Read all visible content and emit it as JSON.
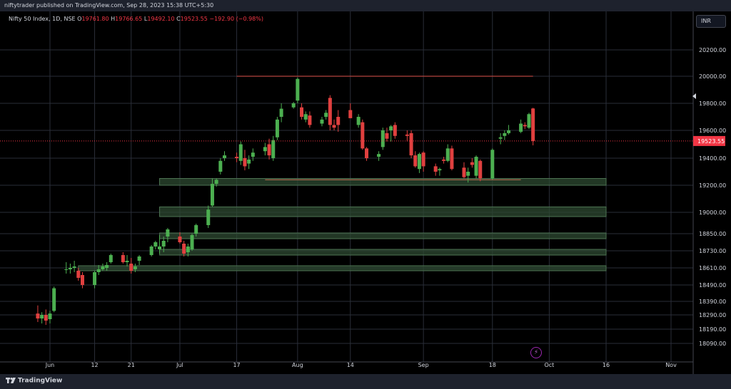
{
  "header": {
    "published_text": "niftytrader published on TradingView.com, Sep 28, 2023 15:38 UTC+5:30"
  },
  "legend": {
    "symbol": "Nifty 50 Index, 1D, NSE",
    "o_label": "O",
    "o_value": "19761.80",
    "h_label": "H",
    "h_value": "19766.65",
    "l_label": "L",
    "l_value": "19492.10",
    "c_label": "C",
    "c_value": "19523.55",
    "change": "−192.90 (−0.98%)"
  },
  "toolbar": {
    "currency": "INR"
  },
  "footer": {
    "brand": "TradingView"
  },
  "colors": {
    "background": "#131722",
    "grid": "#2a2e39",
    "up": "#26a69a",
    "down": "#f23645",
    "up_candle": "#4caf50",
    "down_candle": "#e0403f",
    "zone_fill": "#2e4a32",
    "zone_border": "#4d7352",
    "resistance_line": "#b2443f",
    "support_line": "#a0654a",
    "price_label_bg": "#f23645"
  },
  "chart_data": {
    "type": "candlestick",
    "y_axis": {
      "ticks": [
        "20200.00",
        "20000.00",
        "19800.00",
        "19600.00",
        "19400.00",
        "19200.00",
        "19000.00",
        "18850.00",
        "18730.00",
        "18610.00",
        "18490.00",
        "18390.00",
        "18290.00",
        "18190.00",
        "18090.00"
      ],
      "current_price": "19523.55"
    },
    "x_axis": {
      "ticks": [
        {
          "label": "Jun",
          "date": "2023-06-01"
        },
        {
          "label": "12",
          "date": "2023-06-12"
        },
        {
          "label": "21",
          "date": "2023-06-21"
        },
        {
          "label": "Jul",
          "date": "2023-07-03"
        },
        {
          "label": "17",
          "date": "2023-07-17"
        },
        {
          "label": "Aug",
          "date": "2023-08-01"
        },
        {
          "label": "14",
          "date": "2023-08-14"
        },
        {
          "label": "Sep",
          "date": "2023-09-01"
        },
        {
          "label": "18",
          "date": "2023-09-18"
        },
        {
          "label": "Oct",
          "date": "2023-10-02"
        },
        {
          "label": "16",
          "date": "2023-10-16"
        },
        {
          "label": "Nov",
          "date": "2023-11-01"
        }
      ]
    },
    "candles": [
      {
        "d": "2023-05-29",
        "o": 18300,
        "h": 18360,
        "l": 18240,
        "c": 18265
      },
      {
        "d": "2023-05-30",
        "o": 18265,
        "h": 18310,
        "l": 18230,
        "c": 18290
      },
      {
        "d": "2023-05-31",
        "o": 18290,
        "h": 18330,
        "l": 18220,
        "c": 18250
      },
      {
        "d": "2023-06-01",
        "o": 18260,
        "h": 18320,
        "l": 18230,
        "c": 18300
      },
      {
        "d": "2023-06-02",
        "o": 18320,
        "h": 18480,
        "l": 18310,
        "c": 18470
      },
      {
        "d": "2023-06-05",
        "o": 18595,
        "h": 18650,
        "l": 18570,
        "c": 18600
      },
      {
        "d": "2023-06-06",
        "o": 18600,
        "h": 18640,
        "l": 18570,
        "c": 18610
      },
      {
        "d": "2023-06-07",
        "o": 18610,
        "h": 18660,
        "l": 18580,
        "c": 18620
      },
      {
        "d": "2023-06-08",
        "o": 18590,
        "h": 18610,
        "l": 18520,
        "c": 18540
      },
      {
        "d": "2023-06-09",
        "o": 18560,
        "h": 18580,
        "l": 18470,
        "c": 18490
      },
      {
        "d": "2023-06-12",
        "o": 18490,
        "h": 18590,
        "l": 18470,
        "c": 18580
      },
      {
        "d": "2023-06-13",
        "o": 18580,
        "h": 18630,
        "l": 18560,
        "c": 18600
      },
      {
        "d": "2023-06-14",
        "o": 18600,
        "h": 18640,
        "l": 18590,
        "c": 18620
      },
      {
        "d": "2023-06-15",
        "o": 18610,
        "h": 18650,
        "l": 18590,
        "c": 18630
      },
      {
        "d": "2023-06-16",
        "o": 18650,
        "h": 18710,
        "l": 18640,
        "c": 18700
      },
      {
        "d": "2023-06-19",
        "o": 18700,
        "h": 18720,
        "l": 18640,
        "c": 18650
      },
      {
        "d": "2023-06-20",
        "o": 18650,
        "h": 18700,
        "l": 18620,
        "c": 18660
      },
      {
        "d": "2023-06-21",
        "o": 18640,
        "h": 18680,
        "l": 18570,
        "c": 18590
      },
      {
        "d": "2023-06-22",
        "o": 18600,
        "h": 18640,
        "l": 18580,
        "c": 18620
      },
      {
        "d": "2023-06-23",
        "o": 18660,
        "h": 18700,
        "l": 18630,
        "c": 18690
      },
      {
        "d": "2023-06-26",
        "o": 18700,
        "h": 18770,
        "l": 18690,
        "c": 18760
      },
      {
        "d": "2023-06-27",
        "o": 18760,
        "h": 18800,
        "l": 18740,
        "c": 18790
      },
      {
        "d": "2023-06-28",
        "o": 18740,
        "h": 18840,
        "l": 18710,
        "c": 18760
      },
      {
        "d": "2023-06-29",
        "o": 18760,
        "h": 18830,
        "l": 18720,
        "c": 18800
      },
      {
        "d": "2023-06-30",
        "o": 18830,
        "h": 18890,
        "l": 18790,
        "c": 18880
      },
      {
        "d": "2023-07-03",
        "o": 18830,
        "h": 18860,
        "l": 18780,
        "c": 18790
      },
      {
        "d": "2023-07-04",
        "o": 18780,
        "h": 18800,
        "l": 18690,
        "c": 18710
      },
      {
        "d": "2023-07-05",
        "o": 18720,
        "h": 18780,
        "l": 18690,
        "c": 18760
      },
      {
        "d": "2023-07-06",
        "o": 18740,
        "h": 18850,
        "l": 18730,
        "c": 18840
      },
      {
        "d": "2023-07-07",
        "o": 18850,
        "h": 18920,
        "l": 18830,
        "c": 18910
      },
      {
        "d": "2023-07-10",
        "o": 18910,
        "h": 19050,
        "l": 18890,
        "c": 19020
      },
      {
        "d": "2023-07-11",
        "o": 19050,
        "h": 19250,
        "l": 19040,
        "c": 19210
      },
      {
        "d": "2023-07-12",
        "o": 19210,
        "h": 19250,
        "l": 19190,
        "c": 19240
      },
      {
        "d": "2023-07-13",
        "o": 19300,
        "h": 19400,
        "l": 19280,
        "c": 19380
      },
      {
        "d": "2023-07-14",
        "o": 19400,
        "h": 19450,
        "l": 19380,
        "c": 19420
      },
      {
        "d": "2023-07-17",
        "o": 19410,
        "h": 19440,
        "l": 19370,
        "c": 19400
      },
      {
        "d": "2023-07-18",
        "o": 19380,
        "h": 19520,
        "l": 19350,
        "c": 19500
      },
      {
        "d": "2023-07-19",
        "o": 19400,
        "h": 19460,
        "l": 19310,
        "c": 19340
      },
      {
        "d": "2023-07-20",
        "o": 19360,
        "h": 19420,
        "l": 19320,
        "c": 19390
      },
      {
        "d": "2023-07-21",
        "o": 19410,
        "h": 19470,
        "l": 19380,
        "c": 19440
      },
      {
        "d": "2023-07-24",
        "o": 19450,
        "h": 19510,
        "l": 19420,
        "c": 19480
      },
      {
        "d": "2023-07-25",
        "o": 19500,
        "h": 19540,
        "l": 19390,
        "c": 19420
      },
      {
        "d": "2023-07-26",
        "o": 19400,
        "h": 19560,
        "l": 19380,
        "c": 19530
      },
      {
        "d": "2023-07-27",
        "o": 19550,
        "h": 19700,
        "l": 19530,
        "c": 19680
      },
      {
        "d": "2023-07-28",
        "o": 19700,
        "h": 19800,
        "l": 19660,
        "c": 19760
      },
      {
        "d": "2023-07-31",
        "o": 19770,
        "h": 19810,
        "l": 19760,
        "c": 19800
      },
      {
        "d": "2023-08-01",
        "o": 19820,
        "h": 19990,
        "l": 19800,
        "c": 19980
      },
      {
        "d": "2023-08-02",
        "o": 19770,
        "h": 19800,
        "l": 19680,
        "c": 19700
      },
      {
        "d": "2023-08-03",
        "o": 19680,
        "h": 19740,
        "l": 19660,
        "c": 19720
      },
      {
        "d": "2023-08-04",
        "o": 19710,
        "h": 19740,
        "l": 19620,
        "c": 19640
      },
      {
        "d": "2023-08-07",
        "o": 19650,
        "h": 19700,
        "l": 19630,
        "c": 19680
      },
      {
        "d": "2023-08-08",
        "o": 19700,
        "h": 19750,
        "l": 19680,
        "c": 19730
      },
      {
        "d": "2023-08-09",
        "o": 19840,
        "h": 19860,
        "l": 19600,
        "c": 19640
      },
      {
        "d": "2023-08-10",
        "o": 19640,
        "h": 19680,
        "l": 19600,
        "c": 19620
      },
      {
        "d": "2023-08-11",
        "o": 19700,
        "h": 19750,
        "l": 19590,
        "c": 19640
      },
      {
        "d": "2023-08-14",
        "o": 19750,
        "h": 19800,
        "l": 19700,
        "c": 19690
      },
      {
        "d": "2023-08-16",
        "o": 19640,
        "h": 19720,
        "l": 19620,
        "c": 19700
      },
      {
        "d": "2023-08-17",
        "o": 19660,
        "h": 19680,
        "l": 19460,
        "c": 19470
      },
      {
        "d": "2023-08-18",
        "o": 19470,
        "h": 19480,
        "l": 19380,
        "c": 19400
      },
      {
        "d": "2023-08-21",
        "o": 19410,
        "h": 19450,
        "l": 19380,
        "c": 19430
      },
      {
        "d": "2023-08-22",
        "o": 19480,
        "h": 19620,
        "l": 19460,
        "c": 19600
      },
      {
        "d": "2023-08-23",
        "o": 19580,
        "h": 19620,
        "l": 19520,
        "c": 19540
      },
      {
        "d": "2023-08-24",
        "o": 19600,
        "h": 19640,
        "l": 19520,
        "c": 19630
      },
      {
        "d": "2023-08-25",
        "o": 19640,
        "h": 19660,
        "l": 19540,
        "c": 19560
      },
      {
        "d": "2023-08-28",
        "o": 19570,
        "h": 19600,
        "l": 19520,
        "c": 19560
      },
      {
        "d": "2023-08-29",
        "o": 19580,
        "h": 19600,
        "l": 19400,
        "c": 19420
      },
      {
        "d": "2023-08-30",
        "o": 19420,
        "h": 19450,
        "l": 19330,
        "c": 19340
      },
      {
        "d": "2023-08-31",
        "o": 19320,
        "h": 19440,
        "l": 19290,
        "c": 19430
      },
      {
        "d": "2023-09-01",
        "o": 19440,
        "h": 19450,
        "l": 19300,
        "c": 19340
      },
      {
        "d": "2023-09-04",
        "o": 19340,
        "h": 19360,
        "l": 19270,
        "c": 19300
      },
      {
        "d": "2023-09-05",
        "o": 19310,
        "h": 19330,
        "l": 19270,
        "c": 19320
      },
      {
        "d": "2023-09-06",
        "o": 19390,
        "h": 19410,
        "l": 19360,
        "c": 19380
      },
      {
        "d": "2023-09-07",
        "o": 19380,
        "h": 19500,
        "l": 19370,
        "c": 19470
      },
      {
        "d": "2023-09-08",
        "o": 19470,
        "h": 19490,
        "l": 19310,
        "c": 19320
      },
      {
        "d": "2023-09-11",
        "o": 19330,
        "h": 19370,
        "l": 19250,
        "c": 19260
      },
      {
        "d": "2023-09-12",
        "o": 19270,
        "h": 19330,
        "l": 19220,
        "c": 19300
      },
      {
        "d": "2023-09-13",
        "o": 19370,
        "h": 19400,
        "l": 19330,
        "c": 19350
      },
      {
        "d": "2023-09-14",
        "o": 19270,
        "h": 19420,
        "l": 19250,
        "c": 19410
      },
      {
        "d": "2023-09-15",
        "o": 19380,
        "h": 19390,
        "l": 19230,
        "c": 19250
      },
      {
        "d": "2023-09-18",
        "o": 19250,
        "h": 19470,
        "l": 19240,
        "c": 19460
      },
      {
        "d": "2023-09-20",
        "o": 19540,
        "h": 19580,
        "l": 19500,
        "c": 19550
      },
      {
        "d": "2023-09-21",
        "o": 19560,
        "h": 19600,
        "l": 19530,
        "c": 19580
      },
      {
        "d": "2023-09-22",
        "o": 19580,
        "h": 19640,
        "l": 19570,
        "c": 19600
      },
      {
        "d": "2023-09-25",
        "o": 19590,
        "h": 19680,
        "l": 19580,
        "c": 19650
      },
      {
        "d": "2023-09-26",
        "o": 19640,
        "h": 19660,
        "l": 19610,
        "c": 19630
      },
      {
        "d": "2023-09-27",
        "o": 19620,
        "h": 19730,
        "l": 19610,
        "c": 19720
      },
      {
        "d": "2023-09-28",
        "o": 19761.8,
        "h": 19766.65,
        "l": 19492.1,
        "c": 19523.55
      }
    ],
    "horizontal_lines": [
      {
        "kind": "resistance",
        "price": 20000,
        "from": "2023-07-17",
        "to": "2023-09-28"
      },
      {
        "kind": "support",
        "price": 19240,
        "from": "2023-07-24",
        "to": "2023-09-25"
      }
    ],
    "zones": [
      {
        "top": 19250,
        "bottom": 19200,
        "from": "2023-06-28",
        "to": "2023-10-16"
      },
      {
        "top": 19040,
        "bottom": 18970,
        "from": "2023-06-28",
        "to": "2023-10-16"
      },
      {
        "top": 18855,
        "bottom": 18815,
        "from": "2023-06-28",
        "to": "2023-10-16"
      },
      {
        "top": 18740,
        "bottom": 18700,
        "from": "2023-06-28",
        "to": "2023-10-16"
      },
      {
        "top": 18625,
        "bottom": 18590,
        "from": "2023-06-08",
        "to": "2023-10-16"
      }
    ]
  }
}
